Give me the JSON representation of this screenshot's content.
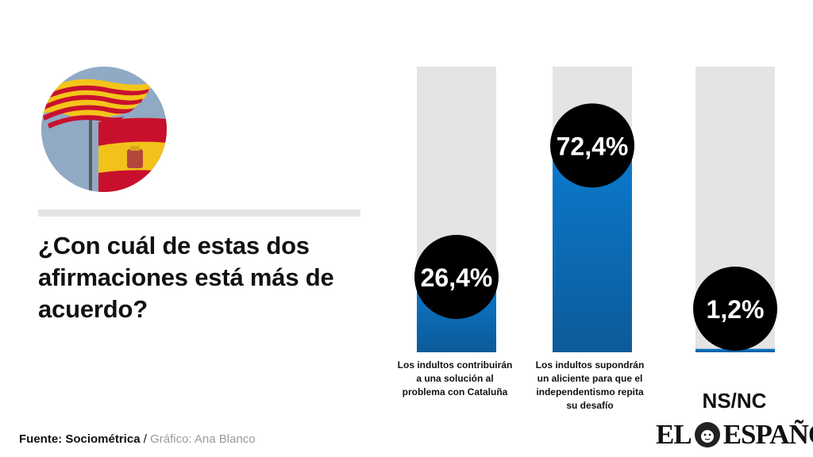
{
  "question": "¿Con cuál de estas dos afirmaciones está más de acuerdo?",
  "source": {
    "label": "Fuente: Sociométrica",
    "separator": " / ",
    "credit": "Gráfico: Ana Blanco"
  },
  "logo": {
    "left": "EL",
    "right": "ESPAÑOL"
  },
  "chart_data": {
    "type": "bar",
    "categories": [
      "Los indultos contribuirán a una solución al problema con Cataluña",
      "Los indultos supondrán un aliciente para que el independentismo repita su desafío",
      "NS/NC"
    ],
    "values": [
      26.4,
      72.4,
      1.2
    ],
    "value_labels": [
      "26,4%",
      "72,4%",
      "1,2%"
    ],
    "ylim": [
      0,
      100
    ],
    "grid": false,
    "colors": {
      "bar": "#0a74c4",
      "bar_dark": "#0d5fa0",
      "track": "#e4e4e4",
      "bubble": "#000000",
      "bubble_text": "#ffffff"
    }
  }
}
